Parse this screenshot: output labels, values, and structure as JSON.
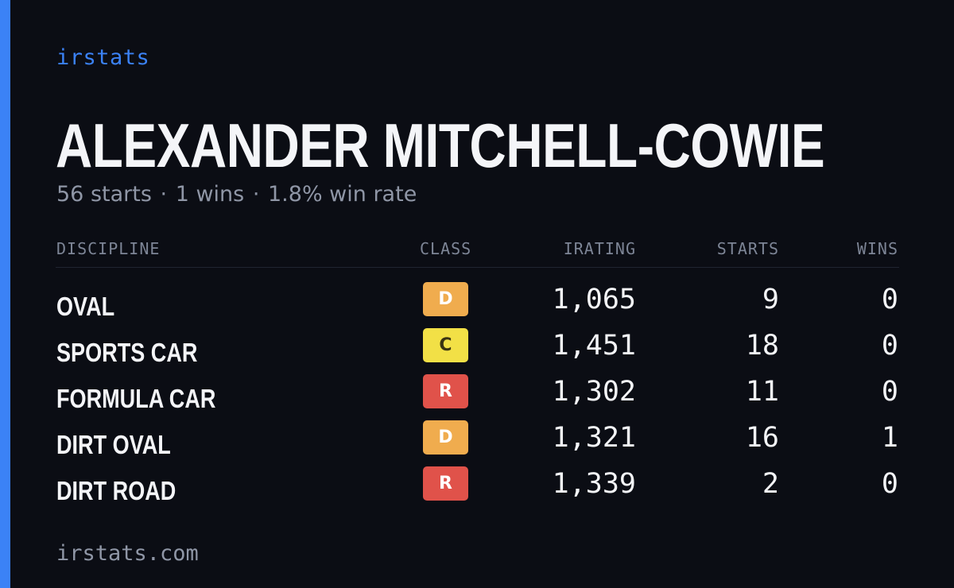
{
  "brand": "irstats",
  "driver": {
    "name": "ALEXANDER MITCHELL-COWIE",
    "summary": {
      "starts": "56 starts",
      "wins": "1 wins",
      "win_rate": "1.8% win rate",
      "separator": "·"
    }
  },
  "table": {
    "headers": {
      "discipline": "DISCIPLINE",
      "class": "CLASS",
      "irating": "IRATING",
      "starts": "STARTS",
      "wins": "WINS"
    },
    "rows": [
      {
        "discipline": "OVAL",
        "class": "D",
        "irating": "1,065",
        "starts": "9",
        "wins": "0",
        "class_color": "#f0ac4e",
        "class_text_color": "#ffffff"
      },
      {
        "discipline": "SPORTS CAR",
        "class": "C",
        "irating": "1,451",
        "starts": "18",
        "wins": "0",
        "class_color": "#f2e046",
        "class_text_color": "#3a3412"
      },
      {
        "discipline": "FORMULA CAR",
        "class": "R",
        "irating": "1,302",
        "starts": "11",
        "wins": "0",
        "class_color": "#e0524a",
        "class_text_color": "#ffffff"
      },
      {
        "discipline": "DIRT OVAL",
        "class": "D",
        "irating": "1,321",
        "starts": "16",
        "wins": "1",
        "class_color": "#f0ac4e",
        "class_text_color": "#ffffff"
      },
      {
        "discipline": "DIRT ROAD",
        "class": "R",
        "irating": "1,339",
        "starts": "2",
        "wins": "0",
        "class_color": "#e0524a",
        "class_text_color": "#ffffff"
      }
    ]
  },
  "footer": "irstats.com",
  "colors": {
    "accent": "#3b82f6",
    "background": "#0b0d14"
  }
}
